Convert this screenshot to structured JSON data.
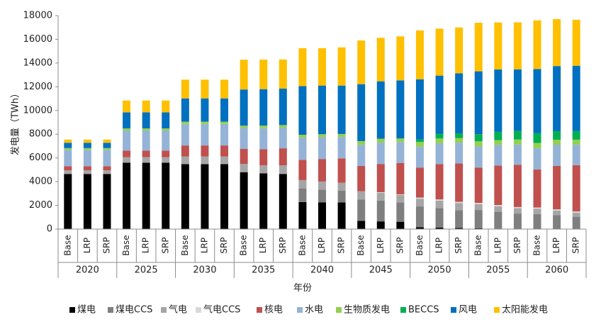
{
  "chart_data": {
    "type": "bar",
    "stacked": true,
    "title": "",
    "ylabel": "发电量（TWh）",
    "xlabel": "年份",
    "ylim": [
      0,
      18000
    ],
    "yticks": [
      0,
      2000,
      4000,
      6000,
      8000,
      10000,
      12000,
      14000,
      16000,
      18000
    ],
    "ytick_labels": [
      "0",
      "2000",
      "4000",
      "6000",
      "8000",
      "10000",
      "12000",
      "14000",
      "16000",
      "18000"
    ],
    "groups": [
      "2020",
      "2025",
      "2030",
      "2035",
      "2040",
      "2045",
      "2050",
      "2055",
      "2060"
    ],
    "scenarios": [
      "Base",
      "LRP",
      "SRP"
    ],
    "categories": [
      "2020 Base",
      "2020 LRP",
      "2020 SRP",
      "2025 Base",
      "2025 LRP",
      "2025 SRP",
      "2030 Base",
      "2030 LRP",
      "2030 SRP",
      "2035 Base",
      "2035 LRP",
      "2035 SRP",
      "2040 Base",
      "2040 LRP",
      "2040 SRP",
      "2045 Base",
      "2045 LRP",
      "2045 SRP",
      "2050 Base",
      "2050 LRP",
      "2050 SRP",
      "2055 Base",
      "2055 LRP",
      "2055 SRP",
      "2060 Base",
      "2060 LRP",
      "2060 SRP"
    ],
    "legend_position": "bottom",
    "series": [
      {
        "name": "煤电",
        "color": "#000000",
        "values": [
          4650,
          4650,
          4650,
          5600,
          5600,
          5600,
          5480,
          5480,
          5480,
          4800,
          4700,
          4650,
          2280,
          2260,
          2250,
          700,
          650,
          620,
          150,
          120,
          100,
          60,
          40,
          30,
          20,
          15,
          10
        ]
      },
      {
        "name": "煤电CCS",
        "color": "#7f7f7f",
        "values": [
          0,
          0,
          0,
          0,
          0,
          0,
          0,
          0,
          0,
          0,
          0,
          0,
          1150,
          1070,
          980,
          1800,
          1760,
          1630,
          1760,
          1650,
          1500,
          1550,
          1420,
          1280,
          1250,
          1170,
          1030
        ]
      },
      {
        "name": "气电",
        "color": "#a6a6a6",
        "values": [
          300,
          300,
          300,
          460,
          460,
          460,
          650,
          650,
          650,
          700,
          680,
          720,
          700,
          680,
          680,
          700,
          650,
          630,
          650,
          630,
          600,
          500,
          470,
          450,
          450,
          380,
          350
        ]
      },
      {
        "name": "气电CCS",
        "color": "#d9d9d9",
        "values": [
          0,
          0,
          0,
          0,
          0,
          0,
          0,
          0,
          0,
          0,
          0,
          0,
          0,
          0,
          0,
          0,
          50,
          50,
          100,
          100,
          100,
          100,
          100,
          100,
          100,
          100,
          100
        ]
      },
      {
        "name": "核电",
        "color": "#c0504d",
        "values": [
          350,
          350,
          350,
          560,
          560,
          560,
          920,
          920,
          920,
          1260,
          1350,
          1440,
          1710,
          1900,
          2050,
          2120,
          2380,
          2650,
          2530,
          2980,
          3230,
          2980,
          3330,
          3570,
          3200,
          3660,
          3900
        ]
      },
      {
        "name": "水电",
        "color": "#95b3d7",
        "values": [
          1390,
          1390,
          1390,
          1690,
          1690,
          1690,
          1810,
          1810,
          1810,
          1760,
          1780,
          1740,
          1860,
          1840,
          1800,
          1780,
          1800,
          1760,
          1740,
          1760,
          1760,
          1780,
          1740,
          1700,
          1790,
          1790,
          1730
        ]
      },
      {
        "name": "生物质发电",
        "color": "#92d050",
        "values": [
          140,
          140,
          140,
          180,
          180,
          180,
          200,
          200,
          200,
          200,
          220,
          220,
          250,
          250,
          260,
          320,
          330,
          300,
          420,
          400,
          380,
          430,
          400,
          420,
          450,
          420,
          420
        ]
      },
      {
        "name": "BECCS",
        "color": "#00b050",
        "values": [
          0,
          0,
          0,
          0,
          0,
          0,
          0,
          0,
          0,
          0,
          0,
          0,
          0,
          0,
          0,
          0,
          0,
          0,
          200,
          400,
          400,
          600,
          700,
          720,
          820,
          720,
          720
        ]
      },
      {
        "name": "风电",
        "color": "#0070c0",
        "values": [
          450,
          450,
          450,
          1350,
          1350,
          1350,
          1960,
          1960,
          1960,
          3050,
          3070,
          3070,
          4100,
          4100,
          4080,
          4800,
          4840,
          4900,
          5080,
          4900,
          5070,
          5300,
          5260,
          5200,
          5420,
          5490,
          5510
        ]
      },
      {
        "name": "太阳能发电",
        "color": "#ffc000",
        "values": [
          270,
          270,
          270,
          1000,
          1000,
          1000,
          1580,
          1580,
          1580,
          2510,
          2490,
          2460,
          3200,
          3150,
          3220,
          3680,
          3670,
          3710,
          4120,
          3960,
          3860,
          4100,
          3960,
          3960,
          4100,
          3960,
          3880
        ]
      }
    ]
  }
}
